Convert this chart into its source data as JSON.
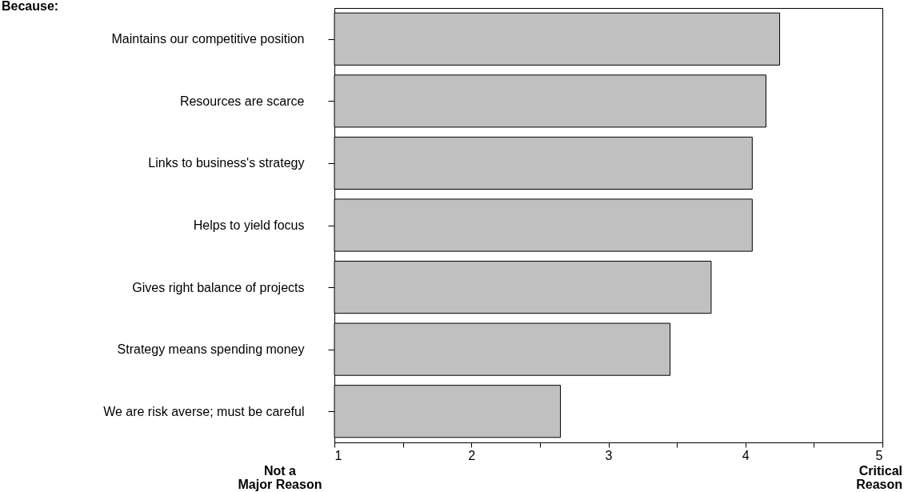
{
  "chart_data": {
    "type": "bar",
    "orientation": "horizontal",
    "title": "Because:",
    "categories": [
      "Maintains our competitive position",
      "Resources are scarce",
      "Links to business's strategy",
      "Helps to yield focus",
      "Gives right balance of projects",
      "Strategy means spending money",
      "We are risk averse; must be careful"
    ],
    "values": [
      4.25,
      4.15,
      4.05,
      4.05,
      3.75,
      3.45,
      2.65
    ],
    "color": "#c0c0c0",
    "xlim": [
      1,
      5
    ],
    "xticks": [
      1,
      {
        "value": 1.5,
        "label": null
      },
      2,
      {
        "value": 2.5,
        "label": null
      },
      3,
      {
        "value": 3.5,
        "label": null
      },
      4,
      {
        "value": 4.5,
        "label": null
      },
      5
    ],
    "annotations": [
      "Not a\nMajor Reason",
      "Critical\nReason"
    ],
    "grid": false
  }
}
